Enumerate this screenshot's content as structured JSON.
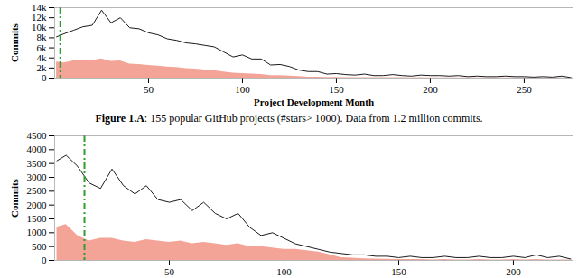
{
  "chart_data": [
    {
      "type": "line",
      "x_label": "Project Development Month",
      "y_label": "Commits",
      "caption": "Figure 1.A: 155 popular GitHub projects (#stars> 1000). Data from 1.2 million commits.",
      "x": [
        1,
        5,
        10,
        15,
        20,
        25,
        30,
        35,
        40,
        45,
        50,
        55,
        60,
        65,
        70,
        75,
        80,
        85,
        90,
        95,
        100,
        105,
        110,
        115,
        120,
        125,
        130,
        135,
        140,
        145,
        150,
        155,
        160,
        165,
        170,
        175,
        180,
        185,
        190,
        195,
        200,
        205,
        210,
        215,
        220,
        225,
        230,
        235,
        240,
        245,
        250,
        255,
        260,
        265,
        270,
        275
      ],
      "series": [
        {
          "type": "area",
          "color": "#f4a497",
          "values": [
            3200,
            3000,
            3400,
            3600,
            3500,
            3800,
            3300,
            3400,
            2800,
            2700,
            2500,
            2400,
            2200,
            2100,
            1900,
            1800,
            1600,
            1500,
            1200,
            1000,
            900,
            800,
            700,
            500,
            500,
            400,
            300,
            200,
            200,
            150,
            150,
            100,
            100,
            100,
            80,
            80,
            100,
            80,
            60,
            80,
            60,
            60,
            50,
            60,
            40,
            50,
            40,
            40,
            50,
            40,
            40,
            30,
            40,
            30,
            50,
            20
          ]
        },
        {
          "type": "line",
          "color": "#000000",
          "values": [
            8200,
            8800,
            9500,
            10200,
            10500,
            13500,
            11000,
            12000,
            10000,
            9800,
            9000,
            8600,
            7800,
            7500,
            7000,
            6800,
            6500,
            6200,
            5200,
            4200,
            4600,
            3800,
            3800,
            2600,
            2700,
            2300,
            1600,
            1300,
            1300,
            800,
            900,
            700,
            600,
            800,
            500,
            500,
            700,
            500,
            400,
            600,
            500,
            500,
            400,
            500,
            300,
            400,
            300,
            300,
            400,
            300,
            300,
            200,
            300,
            200,
            400,
            100
          ]
        }
      ],
      "annotations": [
        {
          "type": "vline",
          "x": 3,
          "color": "#2e9e2e",
          "line_style": "dashdot"
        }
      ],
      "xlim": [
        0,
        276
      ],
      "xticks": [
        50,
        100,
        150,
        200,
        250
      ],
      "ylim": [
        0,
        14000
      ],
      "yticks": [
        0,
        {
          "value": 2000,
          "label": "2k"
        },
        {
          "value": 4000,
          "label": "4k"
        },
        {
          "value": 6000,
          "label": "6k"
        },
        {
          "value": 8000,
          "label": "8k"
        },
        {
          "value": 10000,
          "label": "10k"
        },
        {
          "value": 12000,
          "label": "12k"
        },
        {
          "value": 14000,
          "label": "14k"
        }
      ]
    },
    {
      "type": "line",
      "y_label": "Commits",
      "x": [
        1,
        5,
        10,
        15,
        20,
        25,
        30,
        35,
        40,
        45,
        50,
        55,
        60,
        65,
        70,
        75,
        80,
        85,
        90,
        95,
        100,
        105,
        110,
        115,
        120,
        125,
        130,
        135,
        140,
        145,
        150,
        155,
        160,
        165,
        170,
        175,
        180,
        185,
        190,
        195,
        200,
        205,
        210,
        215,
        220,
        225
      ],
      "series": [
        {
          "type": "area",
          "color": "#f4a497",
          "values": [
            1200,
            1300,
            900,
            700,
            800,
            800,
            700,
            650,
            750,
            700,
            650,
            700,
            600,
            650,
            600,
            550,
            600,
            500,
            500,
            450,
            400,
            400,
            350,
            300,
            200,
            100,
            80,
            60,
            50,
            40,
            30,
            30,
            30,
            20,
            30,
            20,
            20,
            30,
            20,
            20,
            30,
            20,
            30,
            20,
            20,
            20
          ]
        },
        {
          "type": "line",
          "color": "#000000",
          "values": [
            3600,
            3800,
            3400,
            2800,
            2600,
            3300,
            2700,
            2400,
            2700,
            2200,
            2100,
            2200,
            1800,
            2100,
            1700,
            1500,
            1700,
            1200,
            900,
            1000,
            800,
            600,
            500,
            400,
            300,
            250,
            200,
            200,
            150,
            150,
            100,
            150,
            100,
            100,
            150,
            100,
            100,
            150,
            100,
            100,
            150,
            100,
            200,
            100,
            150,
            50
          ]
        }
      ],
      "annotations": [
        {
          "type": "vline",
          "x": 13,
          "color": "#2e9e2e",
          "line_style": "dashdot"
        }
      ],
      "xlim": [
        0,
        226
      ],
      "xticks": [
        50,
        100,
        150,
        200
      ],
      "ylim": [
        0,
        4500
      ],
      "yticks": [
        0,
        500,
        1000,
        1500,
        2000,
        2500,
        3000,
        3500,
        4000,
        4500
      ]
    }
  ]
}
